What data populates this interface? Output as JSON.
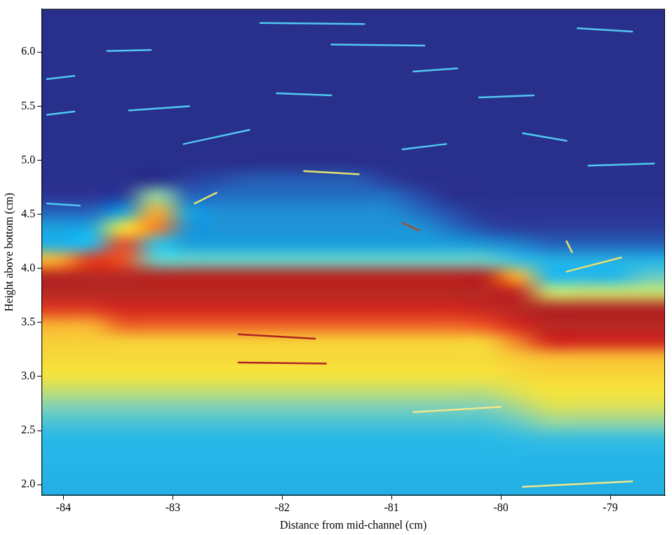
{
  "chart_data": {
    "type": "heatmap",
    "x_label": "Distance from mid-channel (cm)",
    "y_label": "Height above bottom (cm)",
    "xlim": [
      -84.2,
      -78.5
    ],
    "ylim": [
      1.9,
      6.4
    ],
    "xticks": [
      -84,
      -83,
      -82,
      -81,
      -80,
      -79
    ],
    "yticks": [
      {
        "value": 2,
        "label": "2.0"
      },
      {
        "value": 2.5,
        "label": "2.5"
      },
      {
        "value": 3,
        "label": "3.0"
      },
      {
        "value": 3.5,
        "label": "3.5"
      },
      {
        "value": 4,
        "label": "4.0"
      },
      {
        "value": 4.5,
        "label": "4.5"
      },
      {
        "value": 5,
        "label": "5.0"
      },
      {
        "value": 5.5,
        "label": "5.5"
      },
      {
        "value": 6,
        "label": "6.0"
      }
    ],
    "grid": false,
    "color_range": [
      0,
      1
    ],
    "x_edges": [
      -84.2,
      -83.9,
      -83.6,
      -83.3,
      -83.0,
      -82.7,
      -82.4,
      -82.1,
      -81.8,
      -81.5,
      -81.2,
      -80.9,
      -80.6,
      -80.3,
      -80.0,
      -79.7,
      -79.4,
      -79.1,
      -78.8,
      -78.5
    ],
    "y_edges": [
      1.9,
      2.05,
      2.2,
      2.35,
      2.5,
      2.65,
      2.8,
      2.95,
      3.1,
      3.25,
      3.4,
      3.55,
      3.7,
      3.85,
      4.0,
      4.15,
      4.3,
      4.45,
      4.6,
      4.75,
      4.9,
      5.05,
      5.2,
      5.35,
      5.5,
      5.65,
      5.8,
      5.95,
      6.1,
      6.25,
      6.4
    ],
    "cells": [
      [
        0.35,
        0.35,
        0.35,
        0.35,
        0.35,
        0.35,
        0.35,
        0.35,
        0.35,
        0.35,
        0.35,
        0.35,
        0.35,
        0.35,
        0.35,
        0.35,
        0.35,
        0.35,
        0.35
      ],
      [
        0.36,
        0.36,
        0.36,
        0.36,
        0.36,
        0.36,
        0.36,
        0.36,
        0.36,
        0.36,
        0.36,
        0.36,
        0.36,
        0.36,
        0.36,
        0.36,
        0.36,
        0.36,
        0.36
      ],
      [
        0.37,
        0.37,
        0.37,
        0.37,
        0.37,
        0.37,
        0.37,
        0.37,
        0.37,
        0.37,
        0.37,
        0.37,
        0.37,
        0.37,
        0.37,
        0.37,
        0.37,
        0.37,
        0.37
      ],
      [
        0.38,
        0.38,
        0.38,
        0.38,
        0.38,
        0.38,
        0.38,
        0.38,
        0.38,
        0.38,
        0.38,
        0.38,
        0.38,
        0.38,
        0.39,
        0.4,
        0.4,
        0.4,
        0.4
      ],
      [
        0.42,
        0.42,
        0.42,
        0.42,
        0.42,
        0.42,
        0.42,
        0.42,
        0.42,
        0.42,
        0.42,
        0.42,
        0.42,
        0.42,
        0.45,
        0.5,
        0.5,
        0.5,
        0.5
      ],
      [
        0.48,
        0.48,
        0.48,
        0.48,
        0.48,
        0.48,
        0.48,
        0.48,
        0.48,
        0.48,
        0.48,
        0.48,
        0.48,
        0.48,
        0.52,
        0.57,
        0.57,
        0.57,
        0.57
      ],
      [
        0.55,
        0.55,
        0.55,
        0.55,
        0.55,
        0.55,
        0.55,
        0.55,
        0.55,
        0.55,
        0.55,
        0.55,
        0.55,
        0.55,
        0.58,
        0.6,
        0.6,
        0.6,
        0.6
      ],
      [
        0.6,
        0.6,
        0.6,
        0.6,
        0.6,
        0.6,
        0.6,
        0.6,
        0.6,
        0.6,
        0.6,
        0.6,
        0.6,
        0.6,
        0.62,
        0.63,
        0.63,
        0.63,
        0.63
      ],
      [
        0.62,
        0.62,
        0.62,
        0.62,
        0.62,
        0.62,
        0.62,
        0.62,
        0.62,
        0.62,
        0.62,
        0.62,
        0.62,
        0.62,
        0.65,
        0.68,
        0.68,
        0.68,
        0.68
      ],
      [
        0.64,
        0.64,
        0.64,
        0.64,
        0.64,
        0.64,
        0.64,
        0.64,
        0.64,
        0.64,
        0.64,
        0.64,
        0.64,
        0.64,
        0.75,
        0.9,
        0.9,
        0.9,
        0.9
      ],
      [
        0.7,
        0.7,
        0.78,
        0.78,
        0.78,
        0.78,
        0.78,
        0.78,
        0.78,
        0.78,
        0.78,
        0.78,
        0.78,
        0.8,
        0.9,
        0.95,
        0.95,
        0.95,
        0.95
      ],
      [
        0.85,
        0.85,
        0.9,
        0.9,
        0.9,
        0.9,
        0.9,
        0.9,
        0.9,
        0.9,
        0.9,
        0.9,
        0.9,
        0.92,
        0.95,
        0.96,
        0.96,
        0.96,
        0.96
      ],
      [
        0.95,
        0.95,
        0.95,
        0.95,
        0.95,
        0.95,
        0.95,
        0.95,
        0.95,
        0.95,
        0.95,
        0.95,
        0.95,
        0.95,
        0.93,
        0.55,
        0.55,
        0.55,
        0.55
      ],
      [
        0.95,
        0.95,
        0.95,
        0.95,
        0.95,
        0.95,
        0.95,
        0.95,
        0.95,
        0.95,
        0.95,
        0.95,
        0.95,
        0.95,
        0.7,
        0.38,
        0.38,
        0.38,
        0.45
      ],
      [
        0.7,
        0.85,
        0.8,
        0.45,
        0.45,
        0.45,
        0.45,
        0.45,
        0.45,
        0.45,
        0.45,
        0.45,
        0.45,
        0.45,
        0.4,
        0.35,
        0.35,
        0.35,
        0.35
      ],
      [
        0.35,
        0.38,
        0.8,
        0.4,
        0.3,
        0.3,
        0.3,
        0.3,
        0.3,
        0.3,
        0.3,
        0.3,
        0.3,
        0.28,
        0.25,
        0.2,
        0.2,
        0.2,
        0.2
      ],
      [
        0.3,
        0.33,
        0.6,
        0.75,
        0.28,
        0.28,
        0.28,
        0.28,
        0.28,
        0.28,
        0.28,
        0.28,
        0.22,
        0.15,
        0.12,
        0.12,
        0.12,
        0.12,
        0.12
      ],
      [
        0.2,
        0.2,
        0.3,
        0.7,
        0.3,
        0.27,
        0.27,
        0.27,
        0.27,
        0.27,
        0.27,
        0.22,
        0.15,
        0.1,
        0.1,
        0.1,
        0.1,
        0.1,
        0.1
      ],
      [
        0.1,
        0.1,
        0.12,
        0.5,
        0.2,
        0.22,
        0.22,
        0.22,
        0.22,
        0.22,
        0.22,
        0.15,
        0.08,
        0.08,
        0.08,
        0.08,
        0.08,
        0.08,
        0.08
      ],
      [
        0.08,
        0.08,
        0.08,
        0.08,
        0.12,
        0.15,
        0.18,
        0.18,
        0.18,
        0.18,
        0.12,
        0.08,
        0.08,
        0.08,
        0.08,
        0.08,
        0.08,
        0.08,
        0.08
      ],
      [
        0.08,
        0.08,
        0.08,
        0.08,
        0.08,
        0.08,
        0.08,
        0.08,
        0.08,
        0.08,
        0.08,
        0.08,
        0.08,
        0.08,
        0.08,
        0.08,
        0.08,
        0.08,
        0.08
      ],
      [
        0.08,
        0.08,
        0.08,
        0.08,
        0.08,
        0.08,
        0.08,
        0.08,
        0.08,
        0.08,
        0.08,
        0.08,
        0.08,
        0.08,
        0.08,
        0.08,
        0.08,
        0.08,
        0.08
      ],
      [
        0.08,
        0.08,
        0.08,
        0.08,
        0.08,
        0.08,
        0.08,
        0.08,
        0.08,
        0.08,
        0.08,
        0.08,
        0.08,
        0.08,
        0.08,
        0.08,
        0.08,
        0.08,
        0.08
      ],
      [
        0.08,
        0.08,
        0.08,
        0.08,
        0.08,
        0.08,
        0.08,
        0.08,
        0.08,
        0.08,
        0.08,
        0.08,
        0.08,
        0.08,
        0.08,
        0.08,
        0.08,
        0.08,
        0.08
      ],
      [
        0.08,
        0.08,
        0.08,
        0.08,
        0.08,
        0.08,
        0.08,
        0.08,
        0.08,
        0.08,
        0.08,
        0.08,
        0.08,
        0.08,
        0.08,
        0.08,
        0.08,
        0.08,
        0.08
      ],
      [
        0.08,
        0.08,
        0.08,
        0.08,
        0.08,
        0.08,
        0.08,
        0.08,
        0.08,
        0.08,
        0.08,
        0.08,
        0.08,
        0.08,
        0.08,
        0.08,
        0.08,
        0.08,
        0.08
      ],
      [
        0.08,
        0.08,
        0.08,
        0.08,
        0.08,
        0.08,
        0.08,
        0.08,
        0.08,
        0.08,
        0.08,
        0.08,
        0.08,
        0.08,
        0.08,
        0.08,
        0.08,
        0.08,
        0.08
      ],
      [
        0.08,
        0.08,
        0.08,
        0.08,
        0.08,
        0.08,
        0.08,
        0.08,
        0.08,
        0.08,
        0.08,
        0.08,
        0.08,
        0.08,
        0.08,
        0.08,
        0.08,
        0.08,
        0.08
      ],
      [
        0.08,
        0.08,
        0.08,
        0.08,
        0.08,
        0.08,
        0.08,
        0.08,
        0.08,
        0.08,
        0.08,
        0.08,
        0.08,
        0.08,
        0.08,
        0.08,
        0.08,
        0.08,
        0.08
      ],
      [
        0.08,
        0.08,
        0.08,
        0.08,
        0.08,
        0.08,
        0.08,
        0.08,
        0.08,
        0.08,
        0.08,
        0.08,
        0.08,
        0.08,
        0.08,
        0.08,
        0.08,
        0.08,
        0.08
      ]
    ],
    "streaks": [
      {
        "x": [
          -83.6,
          -83.2
        ],
        "y": [
          6.01,
          6.02
        ],
        "color": "#4fc8f0"
      },
      {
        "x": [
          -82.2,
          -81.25
        ],
        "y": [
          6.27,
          6.26
        ],
        "color": "#4fc8f0"
      },
      {
        "x": [
          -81.55,
          -80.7
        ],
        "y": [
          6.07,
          6.06
        ],
        "color": "#4fc8f0"
      },
      {
        "x": [
          -79.3,
          -78.8
        ],
        "y": [
          6.22,
          6.19
        ],
        "color": "#4fc8f0"
      },
      {
        "x": [
          -82.05,
          -81.55
        ],
        "y": [
          5.62,
          5.6
        ],
        "color": "#4fc8f0"
      },
      {
        "x": [
          -83.4,
          -82.85
        ],
        "y": [
          5.46,
          5.5
        ],
        "color": "#4fc8f0"
      },
      {
        "x": [
          -82.9,
          -82.3
        ],
        "y": [
          5.15,
          5.28
        ],
        "color": "#4fc8f0"
      },
      {
        "x": [
          -84.15,
          -83.9
        ],
        "y": [
          5.42,
          5.45
        ],
        "color": "#4fc8f0"
      },
      {
        "x": [
          -80.2,
          -79.7
        ],
        "y": [
          5.58,
          5.6
        ],
        "color": "#4fc8f0"
      },
      {
        "x": [
          -79.8,
          -79.4
        ],
        "y": [
          5.25,
          5.18
        ],
        "color": "#4fc8f0"
      },
      {
        "x": [
          -79.2,
          -78.6
        ],
        "y": [
          4.95,
          4.97
        ],
        "color": "#4fc8f0"
      },
      {
        "x": [
          -81.8,
          -81.3
        ],
        "y": [
          4.9,
          4.87
        ],
        "color": "#e8e070"
      },
      {
        "x": [
          -80.9,
          -80.5
        ],
        "y": [
          5.1,
          5.15
        ],
        "color": "#4fc8f0"
      },
      {
        "x": [
          -84.15,
          -83.85
        ],
        "y": [
          4.6,
          4.58
        ],
        "color": "#4fc8f0"
      },
      {
        "x": [
          -84.15,
          -83.9
        ],
        "y": [
          5.75,
          5.78
        ],
        "color": "#4fc8f0"
      },
      {
        "x": [
          -80.8,
          -80.4
        ],
        "y": [
          5.82,
          5.85
        ],
        "color": "#4fc8f0"
      },
      {
        "x": [
          -82.8,
          -82.6
        ],
        "y": [
          4.6,
          4.7
        ],
        "color": "#e8e070"
      },
      {
        "x": [
          -80.9,
          -80.75
        ],
        "y": [
          4.42,
          4.35
        ],
        "color": "#a0522d"
      },
      {
        "x": [
          -79.4,
          -79.35
        ],
        "y": [
          4.25,
          4.15
        ],
        "color": "#e8e070"
      },
      {
        "x": [
          -79.4,
          -78.9
        ],
        "y": [
          3.97,
          4.1
        ],
        "color": "#e8e070"
      },
      {
        "x": [
          -82.4,
          -81.7
        ],
        "y": [
          3.39,
          3.35
        ],
        "color": "#b22222"
      },
      {
        "x": [
          -82.4,
          -81.6
        ],
        "y": [
          3.13,
          3.12
        ],
        "color": "#b22222"
      },
      {
        "x": [
          -80.8,
          -80.0
        ],
        "y": [
          2.67,
          2.72
        ],
        "color": "#f0e68c"
      },
      {
        "x": [
          -79.8,
          -78.8
        ],
        "y": [
          1.98,
          2.03
        ],
        "color": "#f0e68c"
      }
    ]
  }
}
